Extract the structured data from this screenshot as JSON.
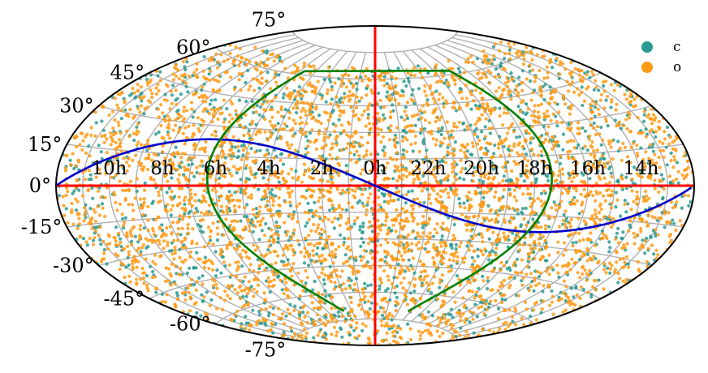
{
  "chart_data": {
    "type": "scatter",
    "projection": "aitoff",
    "title": "",
    "xlabel": "",
    "ylabel": "",
    "grid": true,
    "legend_position": "top-right",
    "ra_tick_labels": [
      "10h",
      "8h",
      "6h",
      "4h",
      "2h",
      "0h",
      "22h",
      "20h",
      "18h",
      "16h",
      "14h"
    ],
    "dec_tick_labels": [
      "75°",
      "60°",
      "45°",
      "30°",
      "15°",
      "0°",
      "-15°",
      "-30°",
      "-45°",
      "-60°",
      "-75°"
    ],
    "series": [
      {
        "name": "c",
        "color": "#2a9a92",
        "approx_count": 1500
      },
      {
        "name": "o",
        "color": "#ff9a14",
        "approx_count": 3800
      }
    ],
    "overlay_lines": [
      {
        "label": "",
        "color": "#ff0000",
        "kind": "celestial equator / meridian axes"
      },
      {
        "label": "",
        "color": "#0000cc",
        "kind": "sinusoidal curve (ecliptic)"
      },
      {
        "label": "",
        "color": "#008000",
        "kind": "closed curve (galactic plane)"
      }
    ]
  }
}
